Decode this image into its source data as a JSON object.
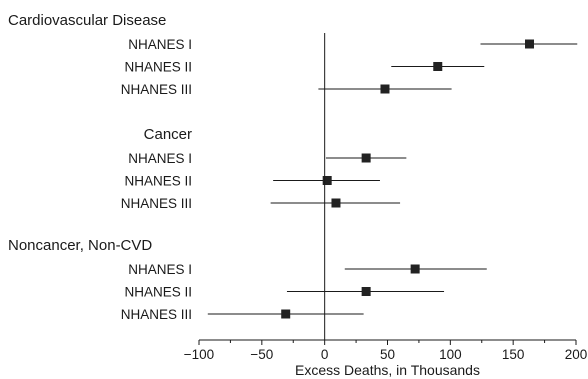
{
  "chart_data": {
    "type": "forest",
    "xlabel": "Excess Deaths, in Thousands",
    "xlim": [
      -100,
      200
    ],
    "xticks": [
      -100,
      -50,
      0,
      50,
      100,
      150,
      200
    ],
    "xtick_labels": [
      "−100",
      "−50",
      "0",
      "50",
      "100",
      "150",
      "200"
    ],
    "reference_line": 0,
    "groups": [
      {
        "name": "Cardiovascular Disease",
        "rows": [
          {
            "label": "NHANES I",
            "estimate": 163,
            "lower": 124,
            "upper": 201
          },
          {
            "label": "NHANES II",
            "estimate": 90,
            "lower": 53,
            "upper": 127
          },
          {
            "label": "NHANES III",
            "estimate": 48,
            "lower": -5,
            "upper": 101
          }
        ]
      },
      {
        "name": "Cancer",
        "rows": [
          {
            "label": "NHANES I",
            "estimate": 33,
            "lower": 1,
            "upper": 65
          },
          {
            "label": "NHANES II",
            "estimate": 2,
            "lower": -41,
            "upper": 44
          },
          {
            "label": "NHANES III",
            "estimate": 9,
            "lower": -43,
            "upper": 60
          }
        ]
      },
      {
        "name": "Noncancer, Non-CVD",
        "rows": [
          {
            "label": "NHANES I",
            "estimate": 72,
            "lower": 16,
            "upper": 129
          },
          {
            "label": "NHANES II",
            "estimate": 33,
            "lower": -30,
            "upper": 95
          },
          {
            "label": "NHANES III",
            "estimate": -31,
            "lower": -93,
            "upper": 31
          }
        ]
      }
    ],
    "colors": {
      "marker": "#222222",
      "line": "#1a1a1a"
    }
  }
}
